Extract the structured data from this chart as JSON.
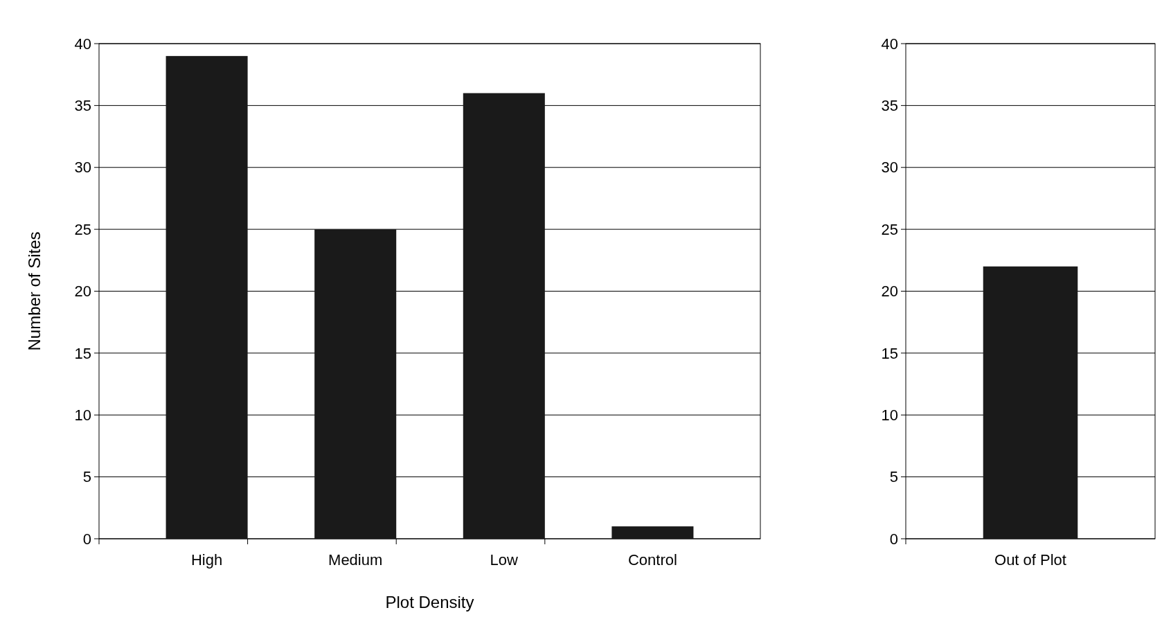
{
  "chart_data": [
    {
      "type": "bar",
      "xlabel": "Plot Density",
      "ylabel": "Number of Sites",
      "categories": [
        "High",
        "Medium",
        "Low",
        "Control"
      ],
      "series": [
        {
          "color": "#1a1a1a",
          "values": [
            39,
            25,
            36,
            1
          ]
        }
      ],
      "ylim": [
        0,
        40
      ],
      "yticks": [
        0,
        5,
        10,
        15,
        20,
        25,
        30,
        35,
        40
      ],
      "grid": "y"
    },
    {
      "type": "bar",
      "categories": [
        "Out of Plot"
      ],
      "series": [
        {
          "color": "#1a1a1a",
          "values": [
            22
          ]
        }
      ],
      "ylim": [
        0,
        40
      ],
      "yticks": [
        0,
        5,
        10,
        15,
        20,
        25,
        30,
        35,
        40
      ],
      "grid": "y"
    }
  ]
}
